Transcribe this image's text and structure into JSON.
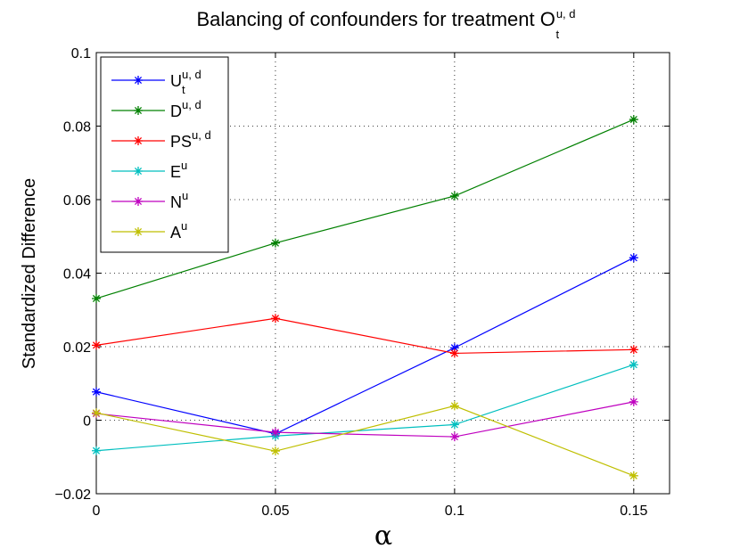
{
  "chart_data": {
    "type": "line",
    "title": {
      "base": "Balancing of confounders for treatment O",
      "sup": "u, d",
      "sub": "t"
    },
    "xlabel": "α",
    "ylabel": "Standardized Difference",
    "x": [
      0,
      0.05,
      0.1,
      0.15
    ],
    "xticks": [
      "0",
      "0.05",
      "0.1",
      "0.15"
    ],
    "yticks": [
      "−0.02",
      "0",
      "0.02",
      "0.04",
      "0.06",
      "0.08",
      "0.1"
    ],
    "ytick_values": [
      -0.02,
      0,
      0.02,
      0.04,
      0.06,
      0.08,
      0.1
    ],
    "xlim": [
      0,
      0.16
    ],
    "ylim": [
      -0.02,
      0.1
    ],
    "grid": true,
    "legend_position": "top-left",
    "series": [
      {
        "name": "U",
        "sup": "u, d",
        "sub": "t",
        "color": "#0000ff",
        "values": [
          0.0077,
          -0.0037,
          0.0197,
          0.0442
        ]
      },
      {
        "name": "D",
        "sup": "u, d",
        "sub": "",
        "color": "#008000",
        "values": [
          0.0331,
          0.0482,
          0.061,
          0.0818
        ]
      },
      {
        "name": "PS",
        "sup": "u, d",
        "sub": "",
        "color": "#ff0000",
        "values": [
          0.0204,
          0.0277,
          0.0182,
          0.0192
        ]
      },
      {
        "name": "E",
        "sup": "u",
        "sub": "",
        "color": "#00bfbf",
        "values": [
          -0.0083,
          -0.0043,
          -0.0012,
          0.0151
        ]
      },
      {
        "name": "N",
        "sup": "u",
        "sub": "",
        "color": "#bf00bf",
        "values": [
          0.0018,
          -0.0033,
          -0.0045,
          0.005
        ]
      },
      {
        "name": "A",
        "sup": "u",
        "sub": "",
        "color": "#bfbf00",
        "values": [
          0.002,
          -0.0084,
          0.0039,
          -0.0151
        ]
      }
    ]
  }
}
